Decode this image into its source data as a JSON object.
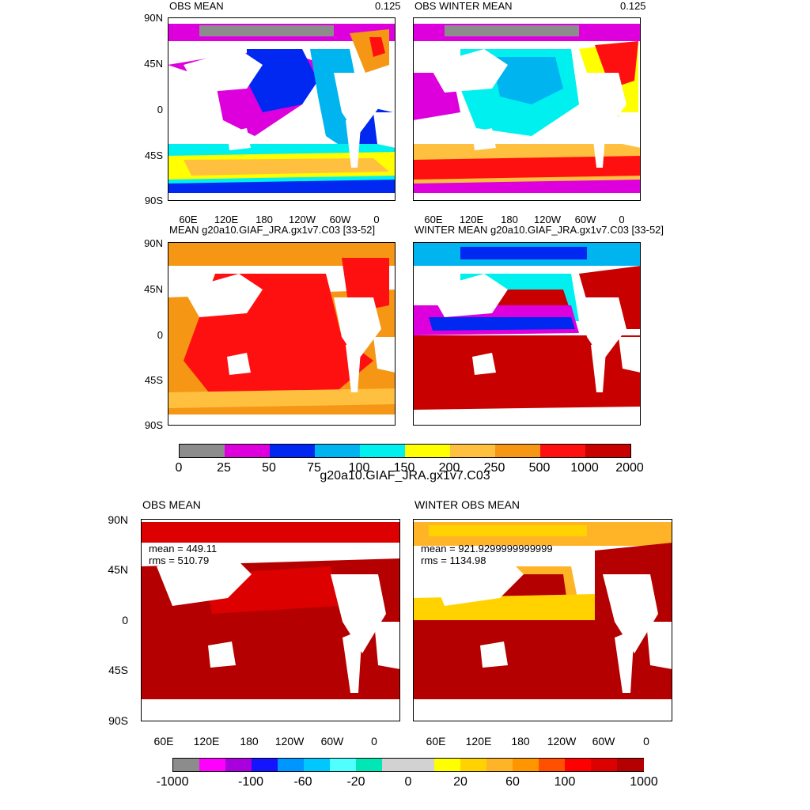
{
  "panels": [
    {
      "title": "OBS MEAN",
      "right_label": "0.125"
    },
    {
      "title": "OBS WINTER MEAN",
      "right_label": "0.125"
    },
    {
      "title": "MEAN g20a10.GIAF_JRA.gx1v7.C03 [33-52]",
      "right_label": ""
    },
    {
      "title": "WINTER MEAN g20a10.GIAF_JRA.gx1v7.C03 [33-52]",
      "right_label": ""
    },
    {
      "title": "OBS MEAN",
      "right_label": ""
    },
    {
      "title": "WINTER OBS MEAN",
      "right_label": ""
    }
  ],
  "lat_labels": [
    "90N",
    "45N",
    "0",
    "45S",
    "90S"
  ],
  "lon_labels": [
    "60E",
    "120E",
    "180",
    "120W",
    "60W",
    "0"
  ],
  "diff_stats": [
    {
      "mean": "mean = 449.11",
      "rms": "rms = 510.79"
    },
    {
      "mean": "mean = 921.9299999999999",
      "rms": "rms = 1134.98"
    }
  ],
  "colorbar1": {
    "title": "g20a10.GIAF_JRA.gx1v7.C03",
    "labels": [
      "0",
      "25",
      "50",
      "75",
      "100",
      "150",
      "200",
      "250",
      "500",
      "1000",
      "2000"
    ],
    "colors": [
      "#8c8c8c",
      "#dd00dd",
      "#0028f0",
      "#00b4f0",
      "#00f0f0",
      "#ffff00",
      "#ffc040",
      "#f59614",
      "#ff1010",
      "#c80000"
    ]
  },
  "colorbar2": {
    "labels": [
      "-1000",
      "-100",
      "-60",
      "-20",
      "0",
      "20",
      "60",
      "100",
      "1000"
    ],
    "colors": [
      "#8c8c8c",
      "#ff00ff",
      "#aa00dd",
      "#1414ff",
      "#0096ff",
      "#00c8ff",
      "#50ffff",
      "#00e6b4",
      "#d2d2d2",
      "#d2d2d2",
      "#ffff00",
      "#ffd200",
      "#ffb428",
      "#ff9600",
      "#ff5000",
      "#ff0000",
      "#dc0000",
      "#b40000"
    ]
  }
}
